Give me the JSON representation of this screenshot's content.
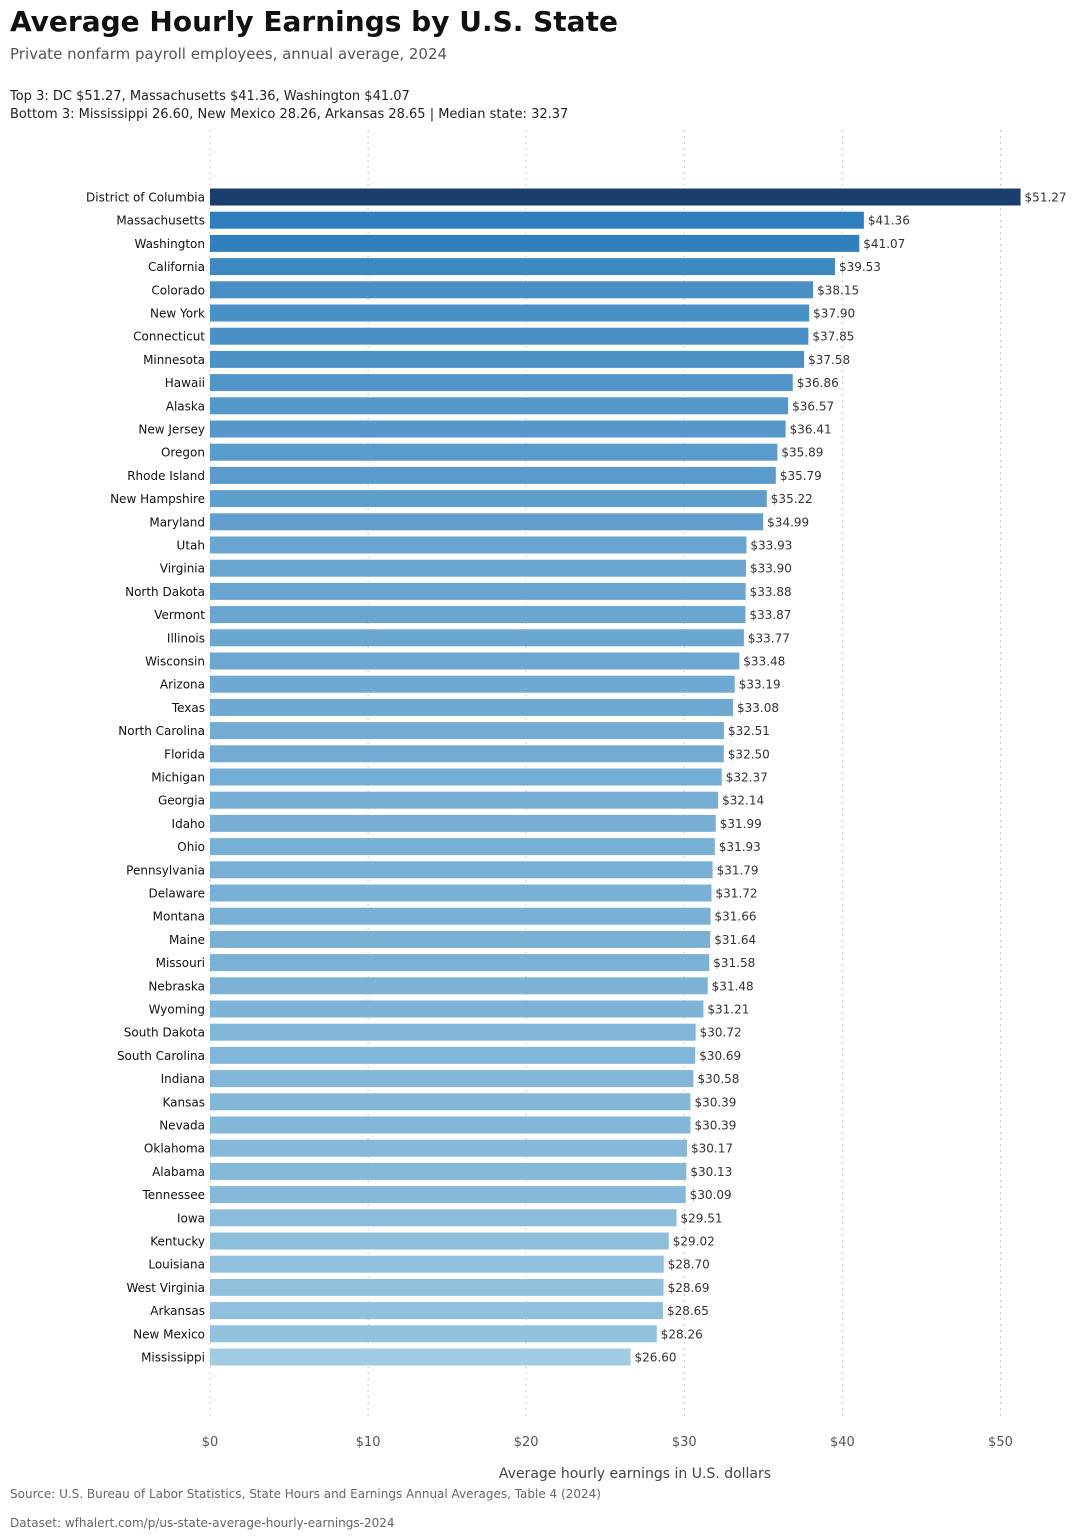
{
  "header": {
    "title": "Average Hourly Earnings by U.S. State",
    "subtitle": "Private nonfarm payroll employees, annual average, 2024",
    "annotation_line1": "Top 3: DC $51.27, Massachusetts $41.36, Washington $41.07",
    "annotation_line2": "Bottom 3: Mississippi 26.60, New Mexico 28.26, Arkansas 28.65 | Median state: 32.37"
  },
  "footer": {
    "source": "Source: U.S. Bureau of Labor Statistics, State Hours and Earnings Annual Averages, Table 4 (2024)",
    "dataset": "Dataset: wfhalert.com/p/us-state-average-hourly-earnings-2024"
  },
  "chart_data": {
    "type": "bar",
    "orientation": "horizontal",
    "xlabel": "Average hourly earnings in U.S. dollars",
    "ylabel": "",
    "xlim": [
      0,
      52.5
    ],
    "xticks": [
      0,
      10,
      20,
      30,
      40,
      50
    ],
    "xtick_labels": [
      "$0",
      "$10",
      "$20",
      "$30",
      "$40",
      "$50"
    ],
    "grid": "vertical dotted",
    "value_label_prefix": "$",
    "highlight_color": "#1a3f6f",
    "color_dark": "#2f7ebd",
    "color_light": "#a0cbe2",
    "categories": [
      "District of Columbia",
      "Massachusetts",
      "Washington",
      "California",
      "Colorado",
      "New York",
      "Connecticut",
      "Minnesota",
      "Hawaii",
      "Alaska",
      "New Jersey",
      "Oregon",
      "Rhode Island",
      "New Hampshire",
      "Maryland",
      "Utah",
      "Virginia",
      "North Dakota",
      "Vermont",
      "Illinois",
      "Wisconsin",
      "Arizona",
      "Texas",
      "North Carolina",
      "Florida",
      "Michigan",
      "Georgia",
      "Idaho",
      "Ohio",
      "Pennsylvania",
      "Delaware",
      "Montana",
      "Maine",
      "Missouri",
      "Nebraska",
      "Wyoming",
      "South Dakota",
      "South Carolina",
      "Indiana",
      "Kansas",
      "Nevada",
      "Oklahoma",
      "Alabama",
      "Tennessee",
      "Iowa",
      "Kentucky",
      "Louisiana",
      "West Virginia",
      "Arkansas",
      "New Mexico",
      "Mississippi"
    ],
    "values": [
      51.27,
      41.36,
      41.07,
      39.53,
      38.15,
      37.9,
      37.85,
      37.58,
      36.86,
      36.57,
      36.41,
      35.89,
      35.79,
      35.22,
      34.99,
      33.93,
      33.9,
      33.88,
      33.87,
      33.77,
      33.48,
      33.19,
      33.08,
      32.51,
      32.5,
      32.37,
      32.14,
      31.99,
      31.93,
      31.79,
      31.72,
      31.66,
      31.64,
      31.58,
      31.48,
      31.21,
      30.72,
      30.69,
      30.58,
      30.39,
      30.39,
      30.17,
      30.13,
      30.09,
      29.51,
      29.02,
      28.7,
      28.69,
      28.65,
      28.26,
      26.6
    ]
  }
}
